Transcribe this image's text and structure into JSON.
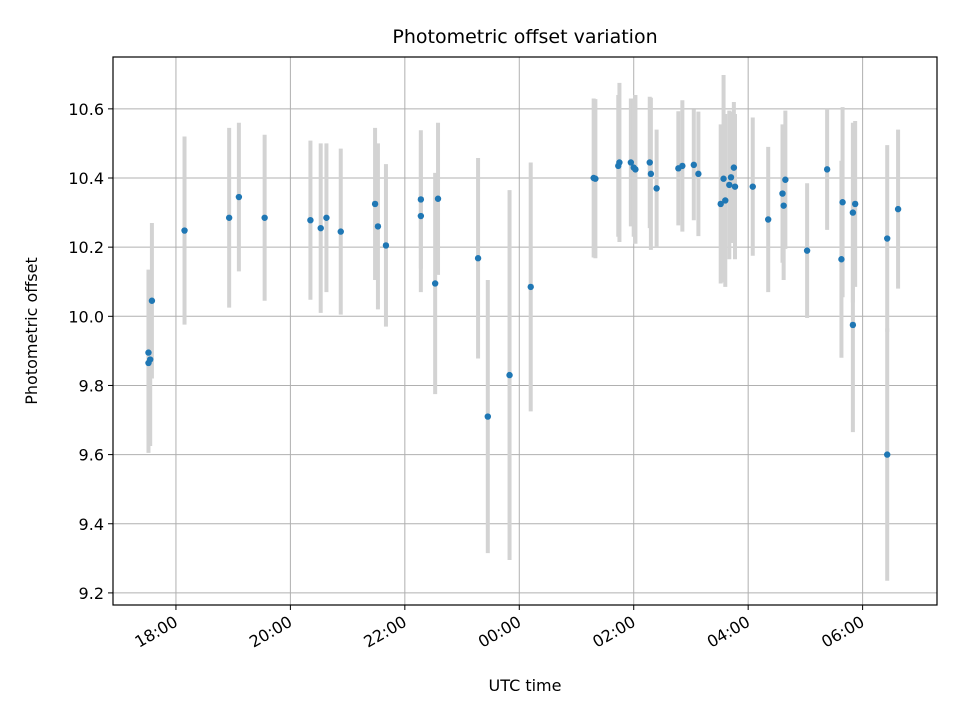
{
  "chart_data": {
    "type": "scatter",
    "title": "Photometric offset variation",
    "xlabel": "UTC time",
    "ylabel": "Photometric offset",
    "x_tick_labels": [
      "18:00",
      "20:00",
      "22:00",
      "00:00",
      "02:00",
      "04:00",
      "06:00"
    ],
    "x_tick_hours": [
      18,
      20,
      22,
      24,
      26,
      28,
      30
    ],
    "xlim_hours": [
      16.9,
      31.3
    ],
    "ylim": [
      9.165,
      10.75
    ],
    "yticks": [
      9.2,
      9.4,
      9.6,
      9.8,
      10.0,
      10.2,
      10.4,
      10.6
    ],
    "grid": true,
    "colors": {
      "point": "#1f77b4",
      "errorbar": "#d3d3d3",
      "grid": "#b0b0b0"
    },
    "series": [
      {
        "x_hours": [
          17.52,
          17.52,
          17.55,
          17.58,
          18.15,
          18.93,
          19.1,
          19.55,
          20.35,
          20.53,
          20.63,
          20.88,
          21.48,
          21.53,
          21.67,
          22.28,
          22.28,
          22.53,
          22.58,
          23.28,
          23.45,
          23.83,
          24.2,
          25.3,
          25.33,
          25.73,
          25.75,
          25.95,
          26.0,
          26.03,
          26.28,
          26.3,
          26.4,
          26.78,
          26.85,
          27.05,
          27.13,
          27.52,
          27.57,
          27.6,
          27.67,
          27.7,
          27.75,
          27.77,
          28.08,
          28.35,
          28.6,
          28.62,
          28.65,
          29.03,
          29.38,
          29.63,
          29.65,
          29.83,
          29.83,
          29.87,
          30.43,
          30.43,
          30.62
        ],
        "y": [
          9.865,
          9.895,
          9.875,
          10.045,
          10.248,
          10.285,
          10.345,
          10.285,
          10.278,
          10.255,
          10.285,
          10.245,
          10.325,
          10.26,
          10.205,
          10.29,
          10.338,
          10.095,
          10.34,
          10.168,
          9.71,
          9.83,
          10.085,
          10.4,
          10.398,
          10.435,
          10.445,
          10.445,
          10.43,
          10.425,
          10.445,
          10.412,
          10.37,
          10.428,
          10.435,
          10.438,
          10.412,
          10.325,
          10.398,
          10.335,
          10.38,
          10.402,
          10.43,
          10.375,
          10.375,
          10.28,
          10.355,
          10.32,
          10.395,
          10.19,
          10.425,
          10.165,
          10.33,
          9.975,
          10.3,
          10.325,
          10.225,
          9.6,
          10.31
        ],
        "yerr": [
          0.26,
          0.24,
          0.25,
          0.225,
          0.272,
          0.26,
          0.215,
          0.24,
          0.23,
          0.245,
          0.215,
          0.24,
          0.22,
          0.24,
          0.235,
          0.22,
          0.2,
          0.32,
          0.22,
          0.29,
          0.395,
          0.535,
          0.36,
          0.23,
          0.23,
          0.205,
          0.23,
          0.185,
          0.2,
          0.215,
          0.19,
          0.22,
          0.17,
          0.165,
          0.19,
          0.16,
          0.18,
          0.23,
          0.3,
          0.25,
          0.215,
          0.19,
          0.19,
          0.21,
          0.2,
          0.21,
          0.2,
          0.215,
          0.2,
          0.195,
          0.175,
          0.285,
          0.275,
          0.31,
          0.26,
          0.24,
          0.27,
          0.365,
          0.23
        ]
      }
    ]
  }
}
